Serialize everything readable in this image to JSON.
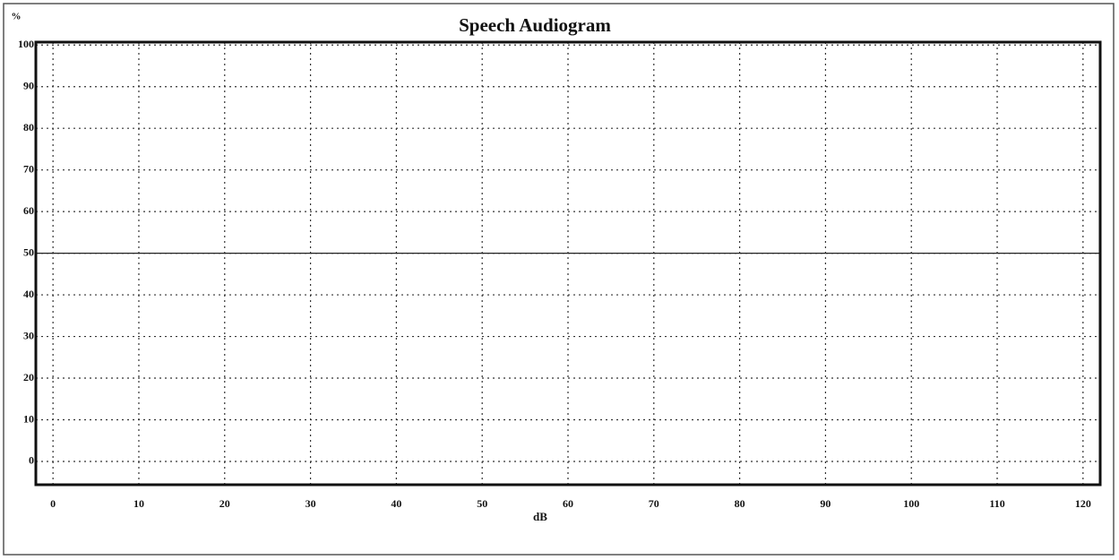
{
  "chart_data": {
    "type": "line",
    "title": "Speech Audiogram",
    "x_label": "dB",
    "y_label": "%",
    "xlim": [
      -2,
      122
    ],
    "xticks": [
      0,
      10,
      20,
      30,
      40,
      50,
      60,
      70,
      80,
      90,
      100,
      110,
      120
    ],
    "ylim": [
      -5.6,
      100.7
    ],
    "yticks": [
      0,
      10,
      20,
      30,
      40,
      50,
      60,
      70,
      80,
      90,
      100
    ],
    "grid": true,
    "reference_line": 50
  }
}
